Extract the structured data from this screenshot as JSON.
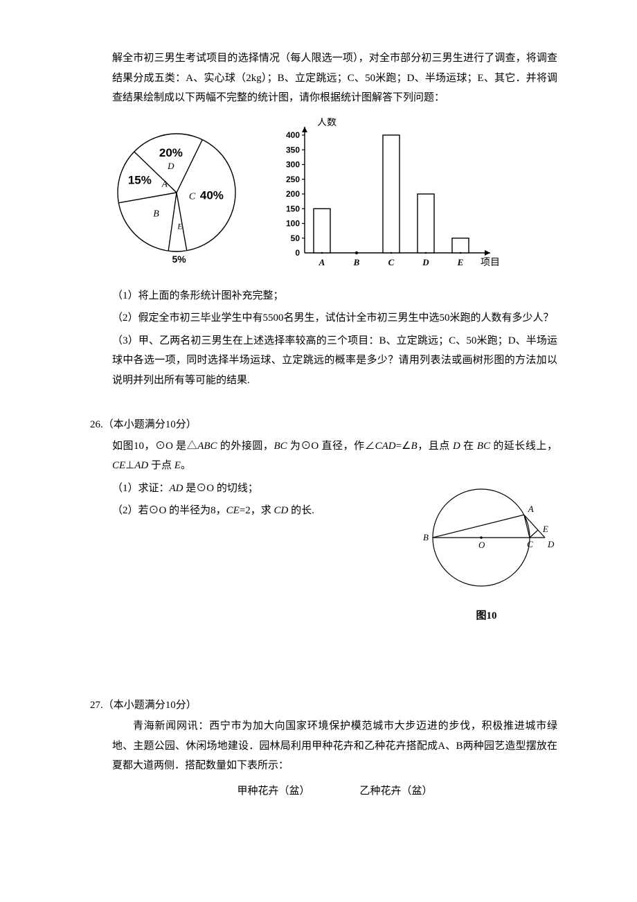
{
  "intro": {
    "p1": "解全市初三男生考试项目的选择情况（每人限选一项），对全市部分初三男生进行了调查，将调查结果分成五类：A、实心球（2kg）；B、立定跳远；C、50米跑；D、半场运球；E、其它．并将调查结果绘制成以下两幅不完整的统计图，请你根据统计图解答下列问题："
  },
  "pie": {
    "background": "#ffffff",
    "stroke": "#000000",
    "stroke_width": 1.4,
    "title_font_size": 15,
    "label_font_size": 14,
    "slices": [
      {
        "label": "D",
        "percent_label": "20%",
        "value": 20
      },
      {
        "label": "A",
        "percent_label": "15%",
        "value": 15
      },
      {
        "label": "B",
        "percent_label": "",
        "value": 20
      },
      {
        "label": "E",
        "percent_label": "5%",
        "value": 5
      },
      {
        "label": "C",
        "percent_label": "40%",
        "value": 40
      }
    ]
  },
  "bar": {
    "type": "bar",
    "y_axis_label": "人数",
    "x_axis_label": "项目",
    "categories": [
      "A",
      "B",
      "C",
      "D",
      "E"
    ],
    "values": [
      150,
      0,
      400,
      200,
      50
    ],
    "ylim": [
      0,
      400
    ],
    "ytick_step": 50,
    "yticks": [
      "0",
      "50",
      "100",
      "150",
      "200",
      "250",
      "300",
      "350",
      "400"
    ],
    "bar_fill": "#ffffff",
    "bar_stroke": "#000000",
    "axis_color": "#000000",
    "font_size": 13,
    "bold_ticks": true,
    "bar_width_ratio": 0.48
  },
  "q25_subs": {
    "s1": "（1）将上面的条形统计图补充完整；",
    "s2": "（2）假定全市初三毕业学生中有5500名男生，试估计全市初三男生中选50米跑的人数有多少人？",
    "s3": "（3）甲、乙两名初三男生在上述选择率较高的三个项目：B、立定跳远；C、50米跑；D、半场运球中各选一项，同时选择半场运球、立定跳远的概率是多少？请用列表法或画树形图的方法加以说明并列出所有等可能的结果."
  },
  "q26": {
    "heading": "26.（本小题满分10分）",
    "line1_a": "如图10，⊙O 是△",
    "line1_b": "ABC",
    "line1_c": " 的外接圆，",
    "line1_d": "BC",
    "line1_e": " 为⊙O 直径，作∠",
    "line1_f": "CAD",
    "line1_g": "=∠",
    "line1_h": "B",
    "line1_i": "，且点 ",
    "line1_j": "D",
    "line1_k": " 在 ",
    "line1_l": "BC",
    "line1_m": " 的延长线上，",
    "line1_n": "CE",
    "line1_o": "⊥",
    "line1_p": "AD",
    "line1_q": " 于点 ",
    "line1_r": "E",
    "line1_s": "。",
    "s1_a": "（1）求证：",
    "s1_b": "AD",
    "s1_c": " 是⊙O 的切线；",
    "s2_a": "（2）若⊙O 的半径为8，",
    "s2_b": "CE",
    "s2_c": "=2，求 ",
    "s2_d": "CD",
    "s2_e": " 的长.",
    "fig_caption": "图10",
    "geom": {
      "stroke": "#000000",
      "stroke_width": 1.2,
      "labels": {
        "A": "A",
        "B": "B",
        "C": "C",
        "D": "D",
        "E": "E",
        "O": "O"
      }
    }
  },
  "q27": {
    "heading": "27.（本小题满分10分）",
    "p1": "青海新闻网讯：西宁市为加大向国家环境保护模范城市大步迈进的步伐，积极推进城市绿地、主题公园、休闲场地建设．园林局利用甲种花卉和乙种花卉搭配成A、B两种园艺造型摆放在夏都大道两侧．搭配数量如下表所示：",
    "table_header_1": "甲种花卉（盆）",
    "table_header_2": "乙种花卉（盆）"
  }
}
